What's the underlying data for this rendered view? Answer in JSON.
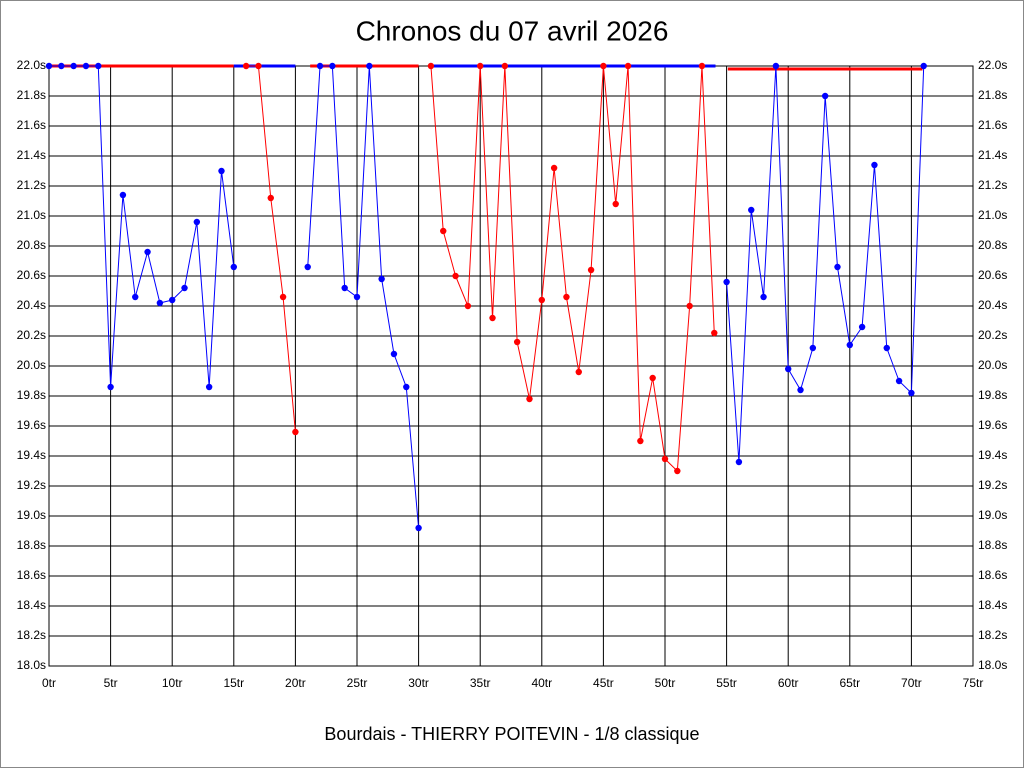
{
  "chart_data": {
    "type": "line",
    "title": "Chronos du 07 avril 2026",
    "xlabel": "Bourdais - THIERRY POITEVIN - 1/8 classique",
    "xlim": [
      0,
      75
    ],
    "xticks": [
      {
        "value": 0,
        "label": "0tr"
      },
      {
        "value": 5,
        "label": "5tr"
      },
      {
        "value": 10,
        "label": "10tr"
      },
      {
        "value": 15,
        "label": "15tr"
      },
      {
        "value": 20,
        "label": "20tr"
      },
      {
        "value": 25,
        "label": "25tr"
      },
      {
        "value": 30,
        "label": "30tr"
      },
      {
        "value": 35,
        "label": "35tr"
      },
      {
        "value": 40,
        "label": "40tr"
      },
      {
        "value": 45,
        "label": "45tr"
      },
      {
        "value": 50,
        "label": "50tr"
      },
      {
        "value": 55,
        "label": "55tr"
      },
      {
        "value": 60,
        "label": "60tr"
      },
      {
        "value": 65,
        "label": "65tr"
      },
      {
        "value": 70,
        "label": "70tr"
      },
      {
        "value": 75,
        "label": "75tr"
      }
    ],
    "ylim": [
      18.0,
      22.0
    ],
    "yticks": [
      {
        "value": 18.0,
        "label": "18.0s"
      },
      {
        "value": 18.2,
        "label": "18.2s"
      },
      {
        "value": 18.4,
        "label": "18.4s"
      },
      {
        "value": 18.6,
        "label": "18.6s"
      },
      {
        "value": 18.8,
        "label": "18.8s"
      },
      {
        "value": 19.0,
        "label": "19.0s"
      },
      {
        "value": 19.2,
        "label": "19.2s"
      },
      {
        "value": 19.4,
        "label": "19.4s"
      },
      {
        "value": 19.6,
        "label": "19.6s"
      },
      {
        "value": 19.8,
        "label": "19.8s"
      },
      {
        "value": 20.0,
        "label": "20.0s"
      },
      {
        "value": 20.2,
        "label": "20.2s"
      },
      {
        "value": 20.4,
        "label": "20.4s"
      },
      {
        "value": 20.6,
        "label": "20.6s"
      },
      {
        "value": 20.8,
        "label": "20.8s"
      },
      {
        "value": 21.0,
        "label": "21.0s"
      },
      {
        "value": 21.2,
        "label": "21.2s"
      },
      {
        "value": 21.4,
        "label": "21.4s"
      },
      {
        "value": 21.6,
        "label": "21.6s"
      },
      {
        "value": 21.8,
        "label": "21.8s"
      },
      {
        "value": 22.0,
        "label": "22.0s"
      }
    ],
    "grid": true,
    "series": [
      {
        "color": "#0000ff",
        "x": [
          0,
          1,
          2,
          3,
          4,
          5,
          6,
          7,
          8,
          9,
          10,
          11,
          12,
          13,
          14,
          15
        ],
        "values": [
          22.0,
          22.0,
          22.0,
          22.0,
          22.0,
          19.86,
          21.14,
          20.46,
          20.76,
          20.42,
          20.44,
          20.52,
          20.96,
          19.86,
          21.3,
          20.66
        ]
      },
      {
        "color": "#ff0000",
        "x": [
          16,
          17,
          18,
          19,
          20
        ],
        "values": [
          22.0,
          22.0,
          21.12,
          20.46,
          19.56
        ]
      },
      {
        "color": "#0000ff",
        "x": [
          21,
          22,
          23,
          24,
          25,
          26,
          27,
          28,
          29,
          30
        ],
        "values": [
          20.66,
          22.0,
          22.0,
          20.52,
          20.46,
          22.0,
          20.58,
          20.08,
          19.86,
          18.92
        ]
      },
      {
        "color": "#ff0000",
        "x": [
          31,
          32,
          33,
          34,
          35,
          36,
          37,
          38,
          39,
          40,
          41,
          42,
          43,
          44,
          45,
          46,
          47,
          48,
          49,
          50,
          51,
          52,
          53,
          54
        ],
        "values": [
          22.0,
          20.9,
          20.6,
          20.4,
          22.0,
          20.32,
          22.0,
          20.16,
          19.78,
          20.44,
          21.32,
          20.46,
          19.96,
          20.64,
          22.0,
          21.08,
          22.0,
          19.5,
          19.92,
          19.38,
          19.3,
          20.4,
          22.0,
          20.22
        ]
      },
      {
        "color": "#0000ff",
        "x": [
          55,
          56,
          57,
          58,
          59,
          60,
          61,
          62,
          63,
          64,
          65,
          66,
          67,
          68,
          69,
          70,
          71
        ],
        "values": [
          20.56,
          19.36,
          21.04,
          20.46,
          22.0,
          19.98,
          19.84,
          20.12,
          21.8,
          20.66,
          20.14,
          20.26,
          21.34,
          20.12,
          19.9,
          19.82,
          22.0
        ]
      }
    ],
    "stints": [
      {
        "color": "#ff0000",
        "x": [
          0,
          15
        ],
        "y": 22.0
      },
      {
        "color": "#0000ff",
        "x": [
          15,
          20
        ],
        "y": 22.0
      },
      {
        "color": "#ff0000",
        "x": [
          21.2,
          30
        ],
        "y": 22.0
      },
      {
        "color": "#0000ff",
        "x": [
          31,
          54.1
        ],
        "y": 22.0
      },
      {
        "color": "#ff0000",
        "x": [
          55.1,
          70.9
        ],
        "y": 21.98
      }
    ]
  }
}
